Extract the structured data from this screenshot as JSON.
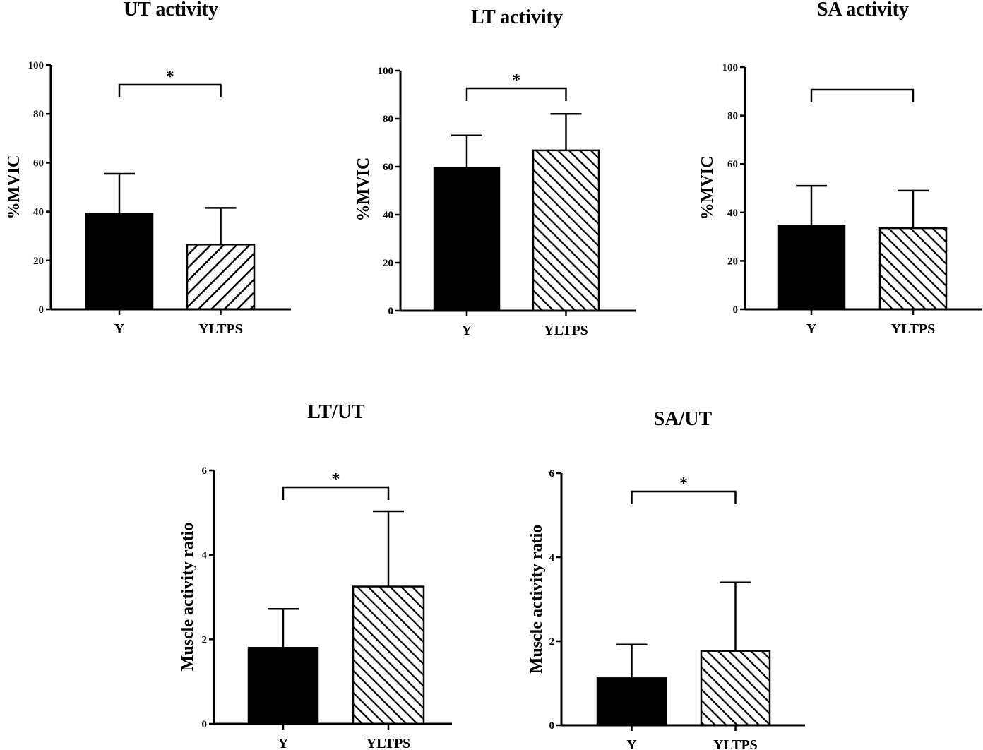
{
  "chart_data": [
    {
      "type": "bar",
      "title": "UT activity",
      "ylabel": "%MVIC",
      "xlabel": "",
      "categories": [
        "Y",
        "YLTPS"
      ],
      "values": [
        39,
        26.5
      ],
      "errors": [
        16.5,
        15
      ],
      "ylim": [
        0,
        100
      ],
      "yticks": [
        "0",
        "20",
        "40",
        "60",
        "80",
        "100"
      ],
      "patterns": [
        "solid",
        "hatch-wide"
      ],
      "significance": {
        "bracket": true,
        "label": "*"
      }
    },
    {
      "type": "bar",
      "title": "LT activity",
      "ylabel": "%MVIC",
      "xlabel": "",
      "categories": [
        "Y",
        "YLTPS"
      ],
      "values": [
        59.5,
        66.8
      ],
      "errors": [
        13.5,
        15.2
      ],
      "ylim": [
        0,
        100
      ],
      "yticks": [
        "0",
        "20",
        "40",
        "60",
        "80",
        "100"
      ],
      "patterns": [
        "solid",
        "hatch-dense"
      ],
      "significance": {
        "bracket": true,
        "label": "*"
      }
    },
    {
      "type": "bar",
      "title": "SA activity",
      "ylabel": "%MVIC",
      "xlabel": "",
      "categories": [
        "Y",
        "YLTPS"
      ],
      "values": [
        34.5,
        33.5
      ],
      "errors": [
        16.5,
        15.5
      ],
      "ylim": [
        0,
        100
      ],
      "yticks": [
        "0",
        "20",
        "40",
        "60",
        "80",
        "100"
      ],
      "patterns": [
        "solid",
        "hatch-dense"
      ],
      "significance": {
        "bracket": true,
        "label": ""
      }
    },
    {
      "type": "bar",
      "title": "LT/UT",
      "ylabel": "Muscle activity ratio",
      "xlabel": "",
      "categories": [
        "Y",
        "YLTPS"
      ],
      "values": [
        1.8,
        3.25
      ],
      "errors": [
        0.92,
        1.78
      ],
      "ylim": [
        0,
        6
      ],
      "yticks": [
        "0",
        "2",
        "4",
        "6"
      ],
      "patterns": [
        "solid",
        "hatch-dense"
      ],
      "significance": {
        "bracket": true,
        "label": "*"
      }
    },
    {
      "type": "bar",
      "title": "SA/UT",
      "ylabel": "Muscle activity ratio",
      "xlabel": "",
      "categories": [
        "Y",
        "YLTPS"
      ],
      "values": [
        1.12,
        1.77
      ],
      "errors": [
        0.8,
        1.63
      ],
      "ylim": [
        0,
        6
      ],
      "yticks": [
        "0",
        "2",
        "4",
        "6"
      ],
      "patterns": [
        "solid",
        "hatch-dense"
      ],
      "significance": {
        "bracket": true,
        "label": "*"
      }
    }
  ]
}
